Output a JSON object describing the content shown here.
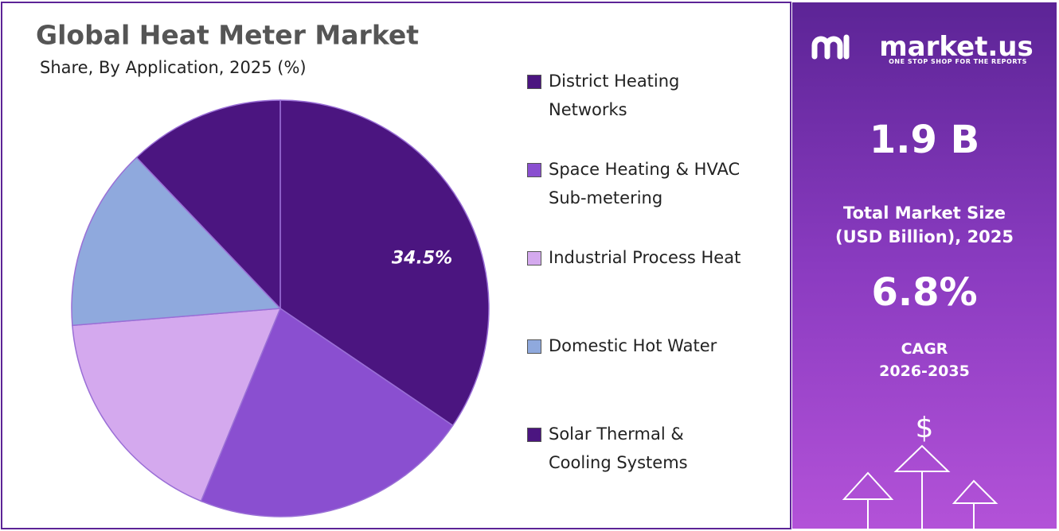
{
  "chart_data": {
    "type": "pie",
    "title": "Global Heat Meter Market",
    "subtitle": "Share, By Application, 2025 (%)",
    "categories": [
      "District Heating\nNetworks",
      "Space Heating & HVAC\nSub-metering",
      "Industrial Process Heat",
      "Domestic Hot Water",
      "Solar Thermal &\nCooling Systems"
    ],
    "values": [
      34.5,
      21.7,
      17.5,
      14.2,
      12.1
    ],
    "value_labels": [
      "34.5%",
      null,
      null,
      null,
      null
    ],
    "colors": [
      "#4b1580",
      "#8a4fd0",
      "#d4a9ee",
      "#8fa9dd",
      "#4b1580"
    ]
  },
  "side_panel": {
    "brand": "market.us",
    "tagline": "ONE STOP SHOP FOR THE REPORTS",
    "market_size": "1.9 B",
    "market_size_label": "Total Market Size\n(USD Billion), 2025",
    "cagr": "6.8%",
    "cagr_label": "CAGR\n2026-2035",
    "currency_symbol": "$"
  }
}
